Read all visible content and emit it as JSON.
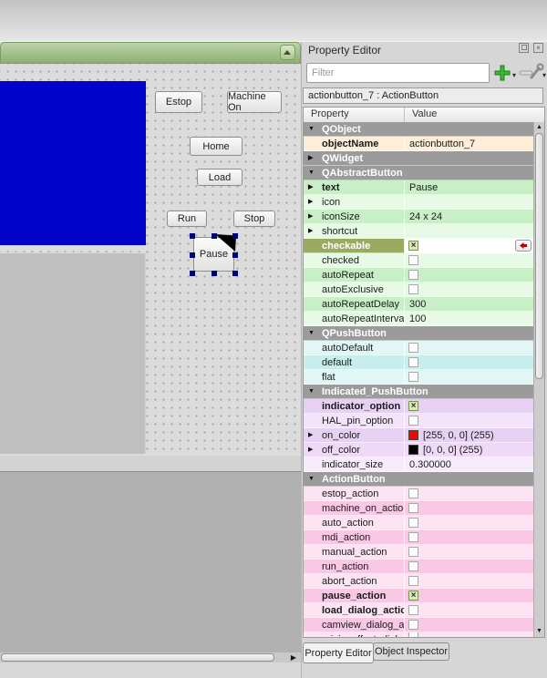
{
  "form": {
    "buttons": {
      "estop": "Estop",
      "machine_on": "Machine On",
      "home": "Home",
      "load": "Load",
      "run": "Run",
      "stop": "Stop"
    },
    "selected_widget": {
      "label": "Pause",
      "handle_color": "#00007d",
      "indicator_color": "#000000"
    },
    "palette": {
      "titlebar_green": "#9cbd82",
      "canvas_blue_rect": "#0203c8"
    }
  },
  "property_editor": {
    "title": "Property Editor",
    "filter_placeholder": "Filter",
    "object_bar": "actionbutton_7 : ActionButton",
    "columns": [
      "Property",
      "Value"
    ],
    "selected_row_color": "#99aa61",
    "group_header_color": "#9b9b9b",
    "rows": [
      {
        "type": "group",
        "label": "QObject",
        "expanded": true
      },
      {
        "name": "objectName",
        "bold": true,
        "value": "actionbutton_7",
        "bg": "#fdeed9"
      },
      {
        "type": "group",
        "label": "QWidget",
        "expanded": false
      },
      {
        "type": "group",
        "label": "QAbstractButton",
        "expanded": true
      },
      {
        "name": "text",
        "bold": true,
        "arrow": true,
        "value": "Pause",
        "bg": "#c8efc6"
      },
      {
        "name": "icon",
        "arrow": true,
        "value": "",
        "bg": "#e7fae5"
      },
      {
        "name": "iconSize",
        "arrow": true,
        "value": "24 x 24",
        "bg": "#c8efc6"
      },
      {
        "name": "shortcut",
        "arrow": true,
        "value": "",
        "bg": "#e7fae5"
      },
      {
        "name": "checkable",
        "bold": true,
        "selected": true,
        "check": true,
        "reset": true,
        "bg": "#99aa61"
      },
      {
        "name": "checked",
        "check": false,
        "bg": "#e7fae5"
      },
      {
        "name": "autoRepeat",
        "check": false,
        "bg": "#c8efc6"
      },
      {
        "name": "autoExclusive",
        "check": false,
        "bg": "#e7fae5"
      },
      {
        "name": "autoRepeatDelay",
        "value": "300",
        "bg": "#c8efc6"
      },
      {
        "name": "autoRepeatInterval",
        "value": "100",
        "bg": "#e7fae5"
      },
      {
        "type": "group",
        "label": "QPushButton",
        "expanded": true
      },
      {
        "name": "autoDefault",
        "check": false,
        "bg": "#e0f7f6"
      },
      {
        "name": "default",
        "check": false,
        "bg": "#c7eeec"
      },
      {
        "name": "flat",
        "check": false,
        "bg": "#e0f7f6"
      },
      {
        "type": "group",
        "label": "Indicated_PushButton",
        "expanded": true
      },
      {
        "name": "indicator_option",
        "bold": true,
        "check": true,
        "bg": "#e7d1f3"
      },
      {
        "name": "HAL_pin_option",
        "check": false,
        "bg": "#f3e3fb"
      },
      {
        "name": "on_color",
        "arrow": true,
        "swatch": "#ff0000",
        "value": "[255, 0, 0] (255)",
        "bg": "#e7d1f3"
      },
      {
        "name": "off_color",
        "arrow": true,
        "swatch": "#000000",
        "value": "[0, 0, 0] (255)",
        "bg": "#eed9f7"
      },
      {
        "name": "indicator_size",
        "value": "0.300000",
        "bg": "#f6ecfc"
      },
      {
        "type": "group",
        "label": "ActionButton",
        "expanded": true
      },
      {
        "name": "estop_action",
        "check": false,
        "bg": "#fce4f2"
      },
      {
        "name": "machine_on_action",
        "check": false,
        "bg": "#f8c8e5"
      },
      {
        "name": "auto_action",
        "check": false,
        "bg": "#fce4f2"
      },
      {
        "name": "mdi_action",
        "check": false,
        "bg": "#f8c8e5"
      },
      {
        "name": "manual_action",
        "check": false,
        "bg": "#fce4f2"
      },
      {
        "name": "run_action",
        "check": false,
        "bg": "#f8c8e5"
      },
      {
        "name": "abort_action",
        "check": false,
        "bg": "#fce4f2"
      },
      {
        "name": "pause_action",
        "bold": true,
        "check": true,
        "bg": "#f8c8e5"
      },
      {
        "name": "load_dialog_action",
        "bold": true,
        "check": false,
        "bg": "#fce4f2"
      },
      {
        "name": "camview_dialog_acti...",
        "check": false,
        "bg": "#f8c8e5"
      },
      {
        "name": "origin_offset_dialo...",
        "check": false,
        "bg": "#fce4f2",
        "partial": true
      }
    ],
    "tabs": [
      {
        "label": "Property Editor",
        "active": true
      },
      {
        "label": "Object Inspector",
        "active": false
      }
    ]
  }
}
